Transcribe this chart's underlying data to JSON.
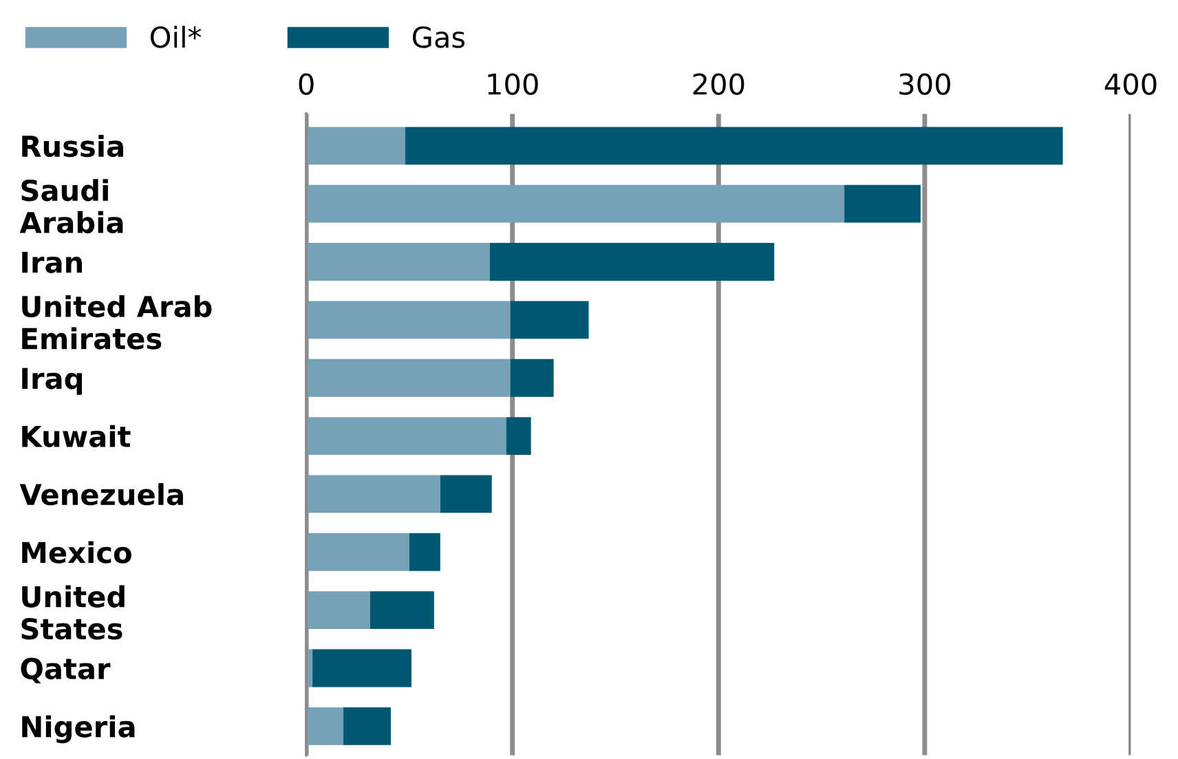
{
  "chart_data": {
    "type": "bar",
    "orientation": "horizontal",
    "stacked": true,
    "categories": [
      "Russia",
      "Saudi\nArabia",
      "Iran",
      "United Arab\nEmirates",
      "Iraq",
      "Kuwait",
      "Venezuela",
      "Mexico",
      "United\nStates",
      "Qatar",
      "Nigeria"
    ],
    "series": [
      {
        "name": "Oil*",
        "color": "#77a1b7",
        "values": [
          48,
          261,
          89,
          99,
          99,
          97,
          65,
          50,
          31,
          3,
          18
        ]
      },
      {
        "name": "Gas",
        "color": "#005870",
        "values": [
          319,
          37,
          138,
          38,
          21,
          12,
          25,
          15,
          31,
          48,
          23
        ]
      }
    ],
    "xlim": [
      0,
      400
    ],
    "xticks": [
      0,
      100,
      200,
      300,
      400
    ],
    "grid": "x",
    "legend": "top left"
  }
}
